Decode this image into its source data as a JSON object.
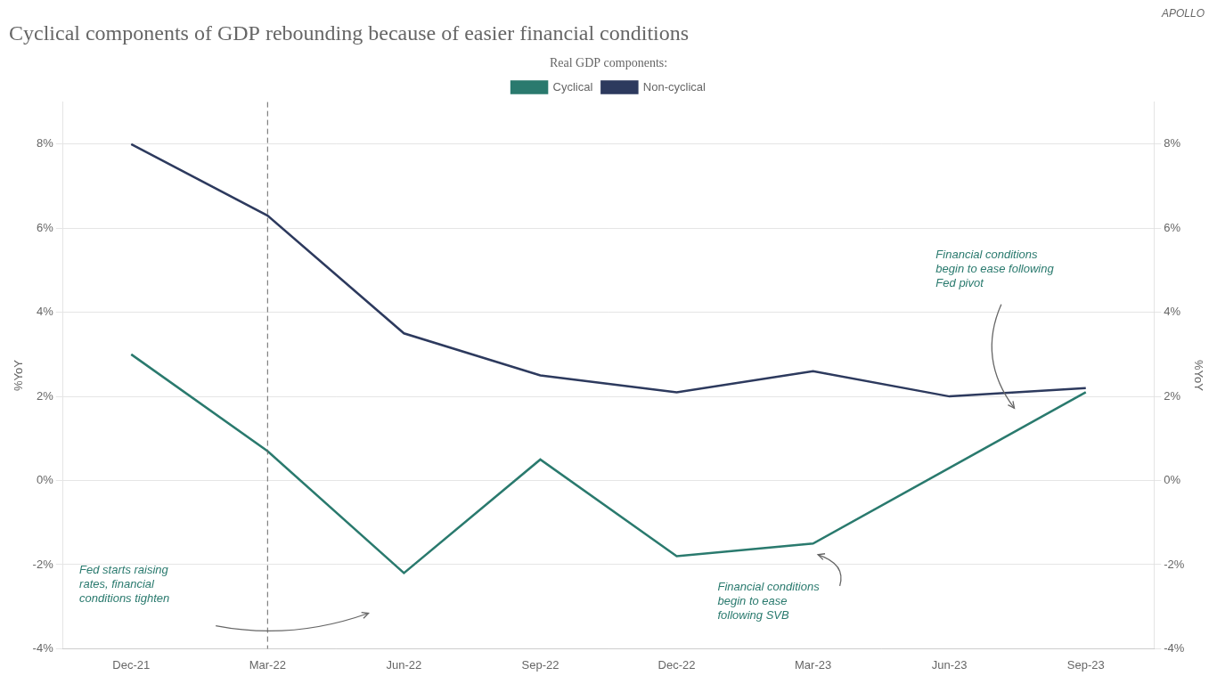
{
  "chart_data": {
    "type": "line",
    "title": "Cyclical components of GDP rebounding because of easier financial conditions",
    "watermark": "APOLLO",
    "categories": [
      "Dec-21",
      "Mar-22",
      "Jun-22",
      "Sep-22",
      "Dec-22",
      "Mar-23",
      "Jun-23",
      "Sep-23"
    ],
    "series": [
      {
        "name": "Cyclical",
        "color": "#2a7a6e",
        "values": [
          3.0,
          0.7,
          -2.2,
          0.5,
          -1.8,
          -1.5,
          0.3,
          2.1
        ]
      },
      {
        "name": "Non-cyclical",
        "color": "#2d3a5e",
        "values": [
          8.0,
          6.3,
          3.5,
          2.5,
          2.1,
          2.6,
          2.0,
          2.2
        ]
      }
    ],
    "legend": "top",
    "legend_title": "Real GDP components:",
    "ylabel": "%YoY",
    "y2label": "%YoY",
    "ylim": [
      -4,
      9
    ],
    "yticks": [
      {
        "value": -4,
        "label": "-4%"
      },
      {
        "value": -2,
        "label": "-2%"
      },
      {
        "value": 0,
        "label": "0%"
      },
      {
        "value": 2,
        "label": "2%"
      },
      {
        "value": 4,
        "label": "4%"
      },
      {
        "value": 6,
        "label": "6%"
      },
      {
        "value": 8,
        "label": "8%"
      }
    ],
    "y2lim": [
      -4,
      9
    ],
    "y2ticks": [
      {
        "value": -4,
        "label": "-4%"
      },
      {
        "value": -2,
        "label": "-2%"
      },
      {
        "value": 0,
        "label": "0%"
      },
      {
        "value": 2,
        "label": "2%"
      },
      {
        "value": 4,
        "label": "4%"
      },
      {
        "value": 6,
        "label": "6%"
      },
      {
        "value": 8,
        "label": "8%"
      }
    ],
    "grid": "y",
    "vlines": [
      {
        "x": "Mar-22",
        "line_style": "dashed"
      }
    ],
    "annotations": [
      {
        "text": "Fed starts raising\nrates, financial\nconditions tighten",
        "color": "#2a7a6e"
      },
      {
        "text": "Financial conditions\nbegin to ease\nfollowing SVB",
        "color": "#2a7a6e"
      },
      {
        "text": "Financial conditions\nbegin to ease following\nFed pivot",
        "color": "#2a7a6e"
      }
    ]
  }
}
